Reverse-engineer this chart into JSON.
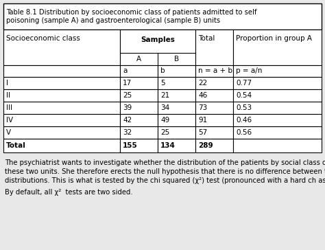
{
  "title": "Table 8.1 Distribution by socioeconomic class of patients admitted to self\npoisoning (sample A) and gastroenterological (sample B) units",
  "rows": [
    [
      "",
      "a",
      "b",
      "n = a + b",
      "p = a/n"
    ],
    [
      "I",
      "17",
      "5",
      "22",
      "0.77"
    ],
    [
      "II",
      "25",
      "21",
      "46",
      "0.54"
    ],
    [
      "III",
      "39",
      "34",
      "73",
      "0.53"
    ],
    [
      "IV",
      "42",
      "49",
      "91",
      "0.46"
    ],
    [
      "V",
      "32",
      "25",
      "57",
      "0.56"
    ]
  ],
  "total_row": [
    "Total",
    "155",
    "134",
    "289",
    ""
  ],
  "footnote_line1": "The psychiatrist wants to investigate whether the distribution of the patients by social class differed in",
  "footnote_line2": "these two units. She therefore erects the null hypothesis that there is no difference between the two",
  "footnote_line3": "distributions. This is what is tested by the chi squared (",
  "footnote_line3b": ") test (pronounced with a hard ch as in “sky”).",
  "footnote_line4": "By default, all ",
  "footnote_line4b": "  tests are two sided.",
  "bg_color": "#e8e8e8",
  "table_bg": "#ffffff",
  "border_color": "#000000",
  "font_size_title": 7.2,
  "font_size_table": 7.5,
  "font_size_footnote": 7.2,
  "figsize": [
    4.74,
    3.64
  ],
  "dpi": 100
}
